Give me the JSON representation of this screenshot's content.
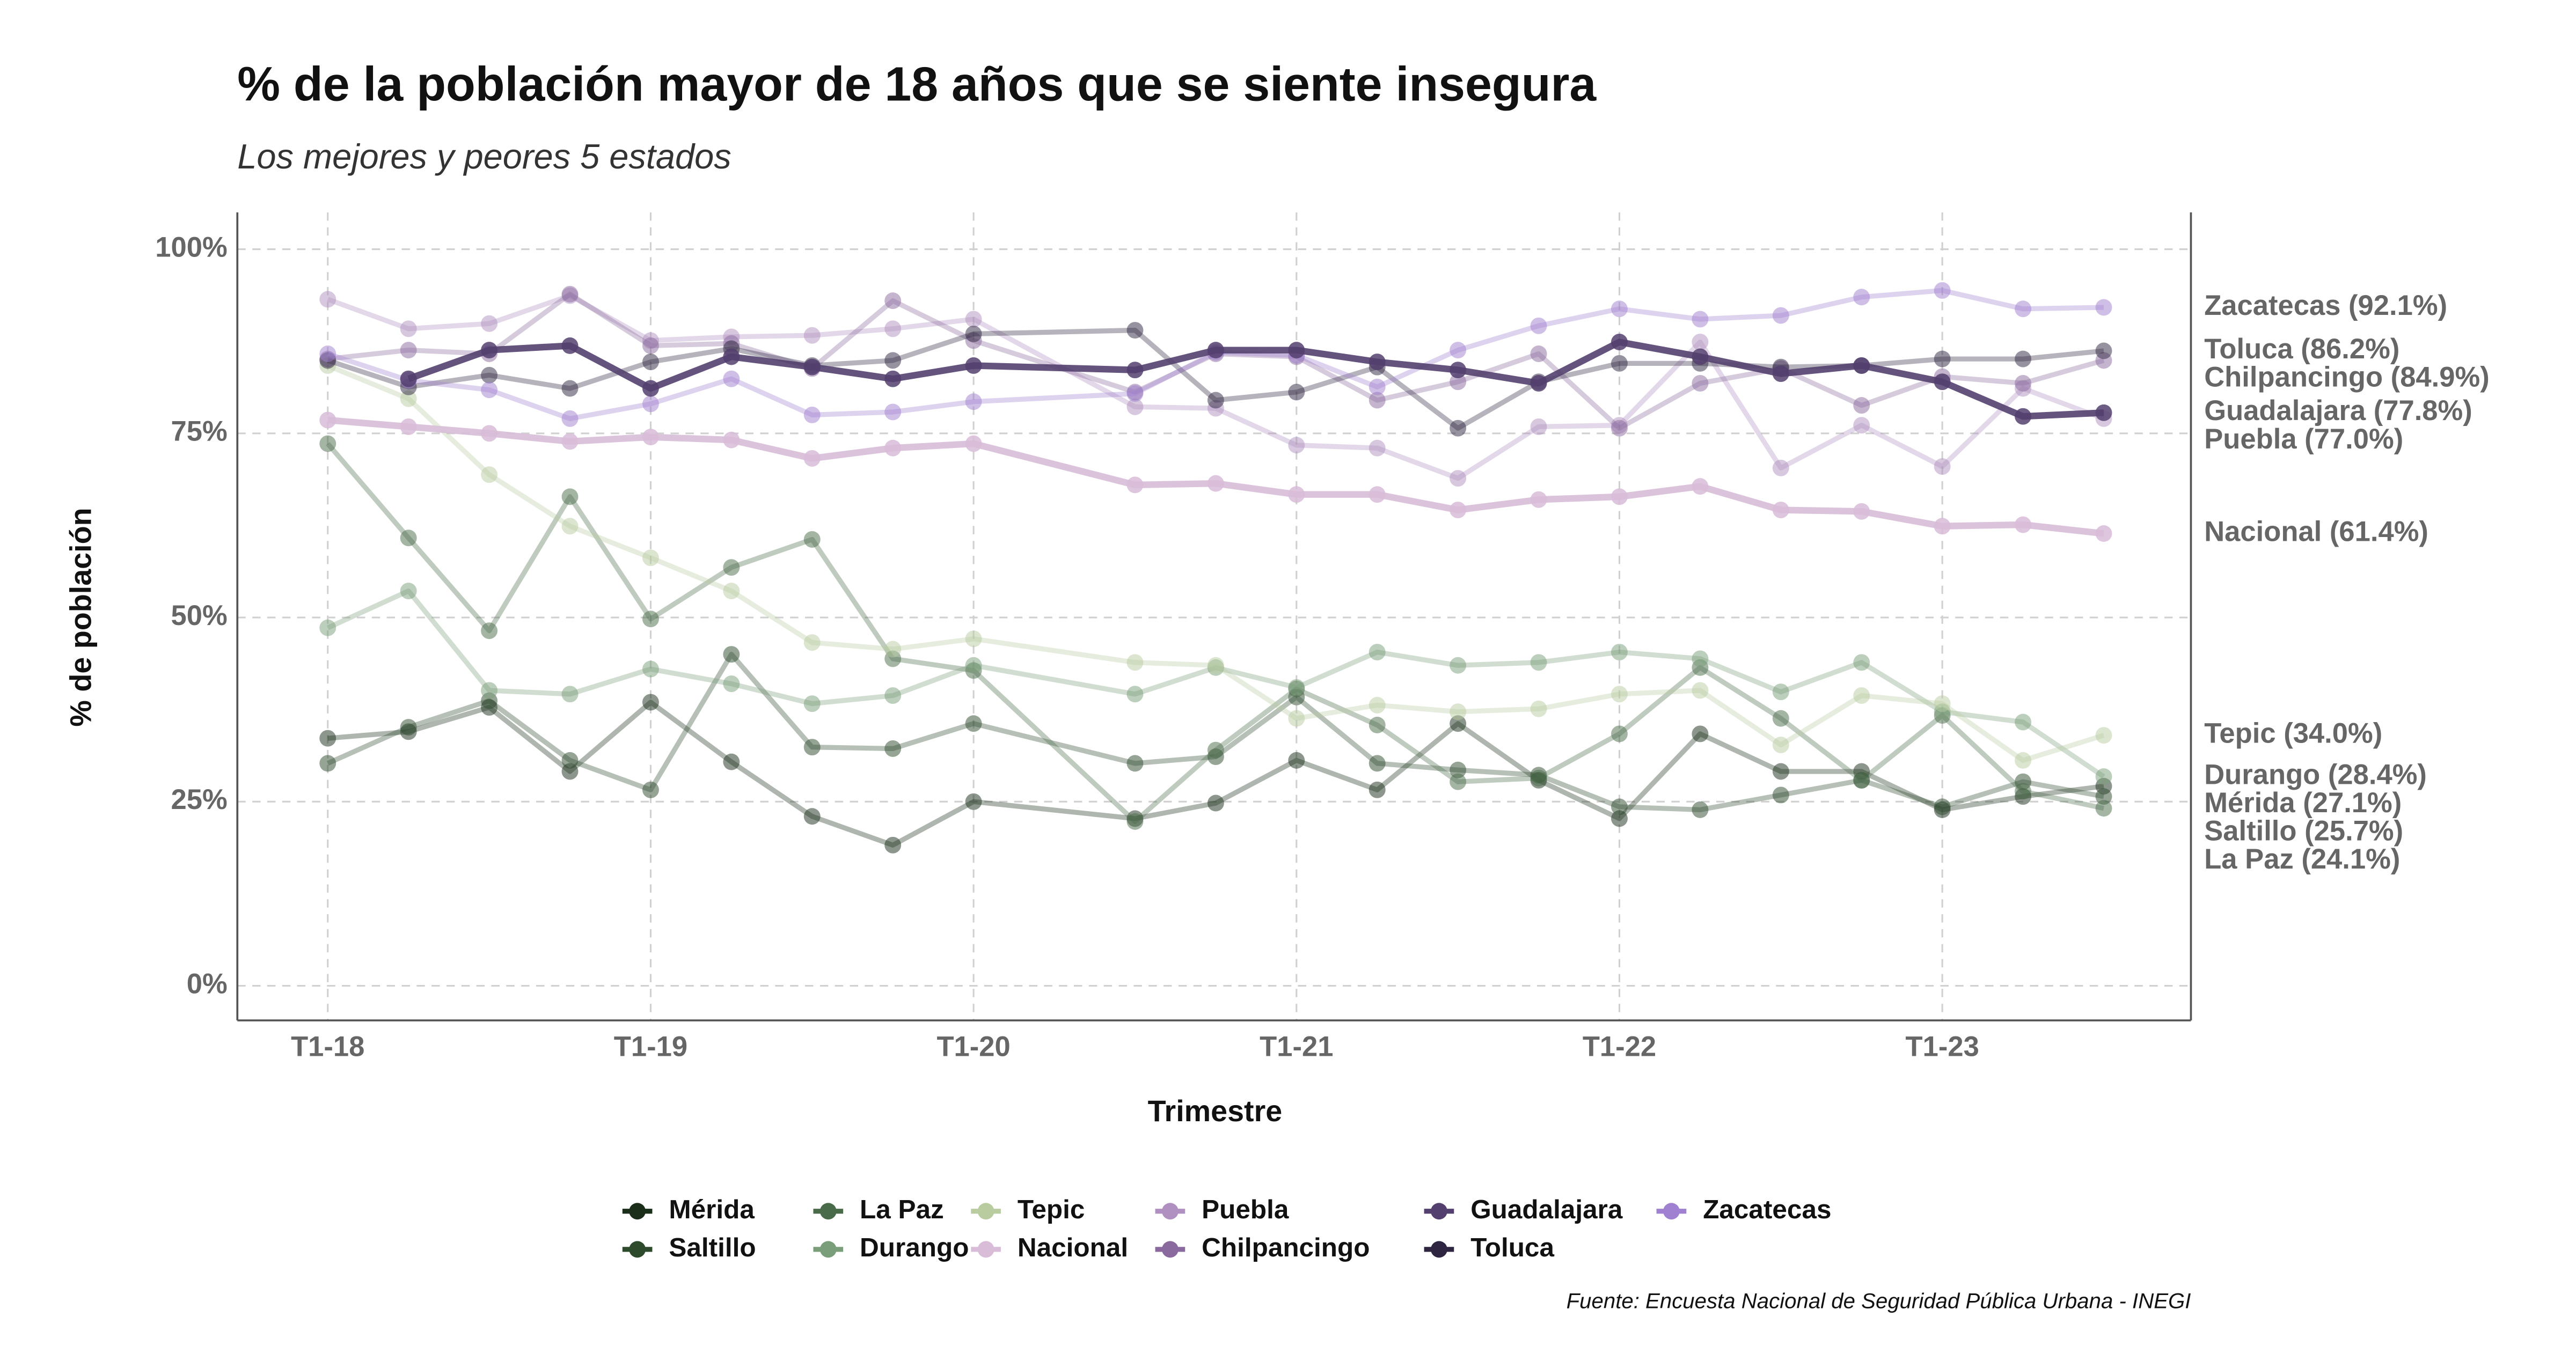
{
  "chart_data": {
    "type": "line",
    "title": "% de la población mayor de 18 años que se siente insegura",
    "subtitle": "Los mejores y peores 5 estados",
    "x_label": "Trimestre",
    "y_label": "% de población",
    "source": "Fuente: Encuesta Nacional de Seguridad Pública Urbana - INEGI",
    "x": [
      2018,
      2018.25,
      2018.5,
      2018.75,
      2019,
      2019.25,
      2019.5,
      2019.75,
      2020,
      2020.5,
      2020.75,
      2021,
      2021.25,
      2021.5,
      2021.75,
      2022,
      2022.25,
      2022.5,
      2022.75,
      2023,
      2023.25,
      2023.5
    ],
    "xlim": [
      2017.72,
      2023.77
    ],
    "xticks": [
      {
        "value": 2018,
        "label": "T1-18"
      },
      {
        "value": 2019,
        "label": "T1-19"
      },
      {
        "value": 2020,
        "label": "T1-20"
      },
      {
        "value": 2021,
        "label": "T1-21"
      },
      {
        "value": 2022,
        "label": "T1-22"
      },
      {
        "value": 2023,
        "label": "T1-23"
      }
    ],
    "ylim": [
      -4.7,
      105
    ],
    "yticks": [
      {
        "value": 0,
        "label": "0%"
      },
      {
        "value": 25,
        "label": "25%"
      },
      {
        "value": 50,
        "label": "50%"
      },
      {
        "value": 75,
        "label": "75%"
      },
      {
        "value": 100,
        "label": "100%"
      }
    ],
    "grid": true,
    "legend": "bottom",
    "series": [
      {
        "name": "Mérida",
        "color": "#1a2e1a",
        "emphasis": false,
        "label": "Mérida (27.1%)",
        "values": [
          33.6,
          34.5,
          37.8,
          29.1,
          38.5,
          30.4,
          23,
          19.1,
          25,
          22.7,
          24.8,
          30.6,
          26.6,
          35.6,
          27.9,
          22.7,
          34.2,
          29.1,
          29.1,
          23.9,
          25.7,
          27.1
        ]
      },
      {
        "name": "Saltillo",
        "color": "#2d4a2d",
        "emphasis": false,
        "label": "Saltillo (25.7%)",
        "values": [
          30.2,
          35.1,
          38.7,
          30.6,
          26.6,
          45,
          32.4,
          32.2,
          35.6,
          30.2,
          31.1,
          39.2,
          30.2,
          29.3,
          28.6,
          24.3,
          23.9,
          25.9,
          27.9,
          24.3,
          27.7,
          25.7
        ]
      },
      {
        "name": "La Paz",
        "color": "#4a6b4a",
        "emphasis": false,
        "label": "La Paz (24.1%)",
        "values": [
          73.6,
          60.8,
          48.2,
          66.4,
          49.8,
          56.8,
          60.6,
          44.4,
          42.8,
          22.3,
          32,
          40.3,
          35.4,
          27.7,
          28.2,
          34.2,
          43.2,
          36.3,
          27.9,
          36.7,
          26.4,
          24.1
        ]
      },
      {
        "name": "Durango",
        "color": "#7a9e7a",
        "emphasis": false,
        "label": "Durango (28.4%)",
        "values": [
          48.6,
          53.6,
          40.1,
          39.6,
          43,
          41,
          38.3,
          39.4,
          43.5,
          39.6,
          43.2,
          40.5,
          45.3,
          43.5,
          43.9,
          45.3,
          44.4,
          39.9,
          43.9,
          37.2,
          35.8,
          28.4
        ]
      },
      {
        "name": "Tepic",
        "color": "#b8cca0",
        "emphasis": false,
        "label": "Tepic (34.0%)",
        "values": [
          84.2,
          79.7,
          69.4,
          62.4,
          58.1,
          53.6,
          46.6,
          45.7,
          47.1,
          43.9,
          43.5,
          36.3,
          38.1,
          37.2,
          37.6,
          39.6,
          40.1,
          32.7,
          39.4,
          38.3,
          30.6,
          34.0
        ]
      },
      {
        "name": "Nacional",
        "color": "#d8bcd8",
        "emphasis": true,
        "label": "Nacional (61.4%)",
        "values": [
          76.8,
          75.9,
          75,
          73.9,
          74.5,
          74.1,
          71.6,
          73,
          73.6,
          68,
          68.2,
          66.7,
          66.7,
          64.6,
          66,
          66.4,
          67.8,
          64.6,
          64.4,
          62.4,
          62.6,
          61.4
        ]
      },
      {
        "name": "Puebla",
        "color": "#b090c0",
        "emphasis": false,
        "label": "Puebla (77.0%)",
        "values": [
          93.2,
          89.2,
          89.9,
          93.7,
          87.6,
          88.1,
          88.3,
          89.2,
          90.5,
          78.6,
          78.4,
          73.4,
          73,
          68.9,
          75.9,
          76.1,
          87.4,
          70.3,
          76.1,
          70.5,
          81.1,
          77.0
        ]
      },
      {
        "name": "Chilpancingo",
        "color": "#8a6a9e",
        "emphasis": false,
        "label": "Chilpancingo (84.9%)",
        "values": [
          85.1,
          86.3,
          85.8,
          93.9,
          86.9,
          87.2,
          83.8,
          93,
          87.6,
          80.6,
          85.8,
          85.4,
          79.5,
          82,
          85.8,
          75.7,
          81.8,
          83.8,
          78.8,
          82.7,
          81.8,
          84.9
        ]
      },
      {
        "name": "Guadalajara",
        "color": "#53406e",
        "emphasis": true,
        "label": "Guadalajara (77.8%)",
        "values": [
          null,
          82.4,
          86.3,
          86.9,
          81.1,
          85.4,
          84,
          82.4,
          84.2,
          83.6,
          86.3,
          86.3,
          84.7,
          83.6,
          81.8,
          87.4,
          85.4,
          83.1,
          84.2,
          82,
          77.3,
          77.8
        ]
      },
      {
        "name": "Toluca",
        "color": "#2e2540",
        "emphasis": false,
        "label": "Toluca (86.2%)",
        "values": [
          84.9,
          81.3,
          82.9,
          81.1,
          84.7,
          86.5,
          84.2,
          84.9,
          88.5,
          89,
          79.5,
          80.6,
          84,
          75.7,
          82,
          84.5,
          84.5,
          84,
          84.2,
          85.1,
          85.1,
          86.2
        ]
      },
      {
        "name": "Zacatecas",
        "color": "#a080d0",
        "emphasis": false,
        "label": "Zacatecas (92.1%)",
        "values": [
          85.8,
          82.2,
          80.9,
          77,
          79,
          82.4,
          77.5,
          77.9,
          79.3,
          80.4,
          86,
          85.6,
          81.3,
          86.3,
          89.6,
          91.9,
          90.5,
          91,
          93.5,
          94.4,
          91.9,
          92.1
        ]
      }
    ]
  }
}
